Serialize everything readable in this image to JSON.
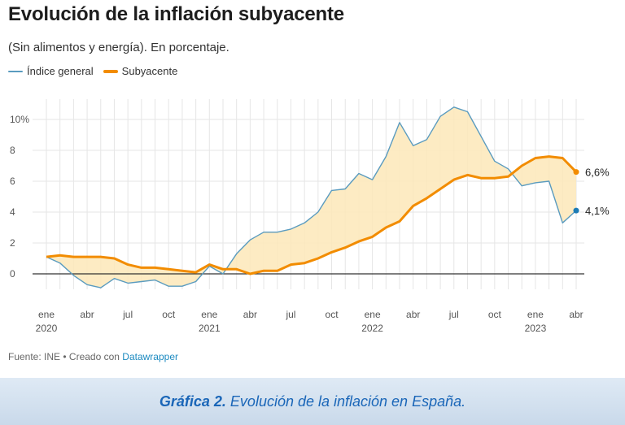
{
  "header": {
    "title": "Evolución de la inflación subyacente",
    "subtitle": "(Sin alimentos y energía). En porcentaje."
  },
  "legend": {
    "general_label": "Índice general",
    "core_label": "Subyacente"
  },
  "colors": {
    "general": "#5a9bbf",
    "core": "#f28c00",
    "fill": "#fde8b8",
    "zero_line": "#333333",
    "grid": "#e6e6e6"
  },
  "end_labels": {
    "core": "6,6%",
    "general": "4,1%"
  },
  "source": {
    "prefix": "Fuente: INE • Creado con ",
    "tool": "Datawrapper"
  },
  "caption": {
    "label": "Gráfica 2.",
    "text": " Evolución de la inflación en España."
  },
  "chart_data": {
    "type": "line",
    "title": "Evolución de la inflación subyacente",
    "subtitle": "(Sin alimentos y energía). En porcentaje.",
    "ylim": [
      -1,
      11
    ],
    "y_ticks": [
      0,
      2,
      4,
      6,
      8,
      10
    ],
    "y_tick_labels": [
      "0",
      "2",
      "4",
      "6",
      "8",
      "10%"
    ],
    "x_ticks": [
      {
        "label": "ene",
        "year": "2020"
      },
      {
        "label": "abr",
        "year": ""
      },
      {
        "label": "jul",
        "year": ""
      },
      {
        "label": "oct",
        "year": ""
      },
      {
        "label": "ene",
        "year": "2021"
      },
      {
        "label": "abr",
        "year": ""
      },
      {
        "label": "jul",
        "year": ""
      },
      {
        "label": "oct",
        "year": ""
      },
      {
        "label": "ene",
        "year": "2022"
      },
      {
        "label": "abr",
        "year": ""
      },
      {
        "label": "jul",
        "year": ""
      },
      {
        "label": "oct",
        "year": ""
      },
      {
        "label": "ene",
        "year": "2023"
      },
      {
        "label": "abr",
        "year": ""
      }
    ],
    "x": [
      "2020-01",
      "2020-02",
      "2020-03",
      "2020-04",
      "2020-05",
      "2020-06",
      "2020-07",
      "2020-08",
      "2020-09",
      "2020-10",
      "2020-11",
      "2020-12",
      "2021-01",
      "2021-02",
      "2021-03",
      "2021-04",
      "2021-05",
      "2021-06",
      "2021-07",
      "2021-08",
      "2021-09",
      "2021-10",
      "2021-11",
      "2021-12",
      "2022-01",
      "2022-02",
      "2022-03",
      "2022-04",
      "2022-05",
      "2022-06",
      "2022-07",
      "2022-08",
      "2022-09",
      "2022-10",
      "2022-11",
      "2022-12",
      "2023-01",
      "2023-02",
      "2023-03",
      "2023-04"
    ],
    "series": [
      {
        "name": "Índice general",
        "values": [
          1.1,
          0.7,
          -0.1,
          -0.7,
          -0.9,
          -0.3,
          -0.6,
          -0.5,
          -0.4,
          -0.8,
          -0.8,
          -0.5,
          0.5,
          0.0,
          1.3,
          2.2,
          2.7,
          2.7,
          2.9,
          3.3,
          4.0,
          5.4,
          5.5,
          6.5,
          6.1,
          7.6,
          9.8,
          8.3,
          8.7,
          10.2,
          10.8,
          10.5,
          8.9,
          7.3,
          6.8,
          5.7,
          5.9,
          6.0,
          3.3,
          4.1
        ]
      },
      {
        "name": "Subyacente",
        "values": [
          1.1,
          1.2,
          1.1,
          1.1,
          1.1,
          1.0,
          0.6,
          0.4,
          0.4,
          0.3,
          0.2,
          0.1,
          0.6,
          0.3,
          0.3,
          0.0,
          0.2,
          0.2,
          0.6,
          0.7,
          1.0,
          1.4,
          1.7,
          2.1,
          2.4,
          3.0,
          3.4,
          4.4,
          4.9,
          5.5,
          6.1,
          6.4,
          6.2,
          6.2,
          6.3,
          7.0,
          7.5,
          7.6,
          7.5,
          6.6
        ]
      }
    ],
    "grid": true,
    "legend_position": "top-left"
  }
}
